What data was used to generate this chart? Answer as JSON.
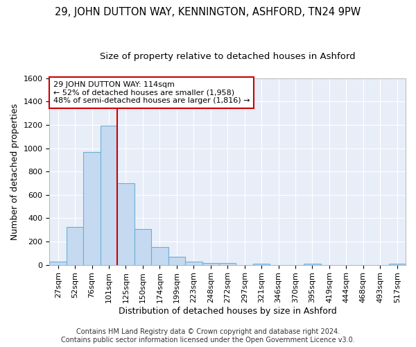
{
  "title": "29, JOHN DUTTON WAY, KENNINGTON, ASHFORD, TN24 9PW",
  "subtitle": "Size of property relative to detached houses in Ashford",
  "xlabel": "Distribution of detached houses by size in Ashford",
  "ylabel": "Number of detached properties",
  "bar_labels": [
    "27sqm",
    "52sqm",
    "76sqm",
    "101sqm",
    "125sqm",
    "150sqm",
    "174sqm",
    "199sqm",
    "223sqm",
    "248sqm",
    "272sqm",
    "297sqm",
    "321sqm",
    "346sqm",
    "370sqm",
    "395sqm",
    "419sqm",
    "444sqm",
    "468sqm",
    "493sqm",
    "517sqm"
  ],
  "bar_values": [
    28,
    325,
    965,
    1195,
    700,
    310,
    152,
    72,
    25,
    18,
    15,
    0,
    12,
    0,
    0,
    12,
    0,
    0,
    0,
    0,
    12
  ],
  "bar_color": "#c5d9f0",
  "bar_edge_color": "#6aafd6",
  "vline_color": "#cc0000",
  "annotation_box_text": "29 JOHN DUTTON WAY: 114sqm\n← 52% of detached houses are smaller (1,958)\n48% of semi-detached houses are larger (1,816) →",
  "annotation_box_color": "#cc0000",
  "annotation_box_bg": "#ffffff",
  "ylim": [
    0,
    1600
  ],
  "yticks": [
    0,
    200,
    400,
    600,
    800,
    1000,
    1200,
    1400,
    1600
  ],
  "fig_bg_color": "#ffffff",
  "plot_bg_color": "#e8eef8",
  "grid_color": "#ffffff",
  "footer": "Contains HM Land Registry data © Crown copyright and database right 2024.\nContains public sector information licensed under the Open Government Licence v3.0.",
  "title_fontsize": 10.5,
  "subtitle_fontsize": 9.5,
  "axis_label_fontsize": 9,
  "tick_fontsize": 8,
  "footer_fontsize": 7,
  "annot_fontsize": 8
}
